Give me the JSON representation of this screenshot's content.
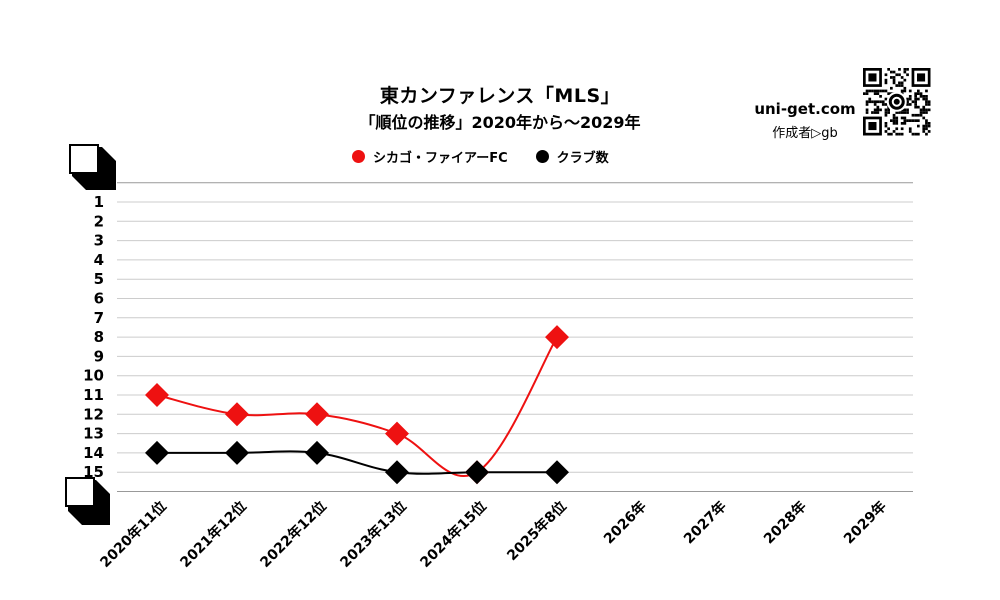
{
  "header": {
    "title": "東カンファレンス「MLS」",
    "subtitle": "「順位の推移」2020年から～2029年",
    "site": "uni-get.com",
    "author": "作成者▷gb"
  },
  "legend": {
    "series1_label": "シカゴ・ファイアーFC",
    "series2_label": "クラブ数"
  },
  "colors": {
    "series1": "#ee1111",
    "series2": "#000000",
    "grid": "#cccccc"
  },
  "chart_data": {
    "type": "line",
    "title": "東カンファレンス「MLS」",
    "subtitle": "「順位の推移」2020年から～2029年",
    "categories": [
      "2020年11位",
      "2021年12位",
      "2022年12位",
      "2023年13位",
      "2024年15位",
      "2025年8位",
      "2026年",
      "2027年",
      "2028年",
      "2029年"
    ],
    "y_ticks": [
      "1",
      "2",
      "3",
      "4",
      "5",
      "6",
      "7",
      "8",
      "9",
      "10",
      "11",
      "12",
      "13",
      "14",
      "15"
    ],
    "y_range": [
      1,
      15
    ],
    "y_inverted": true,
    "grid": true,
    "legend_position": "top-center",
    "series": [
      {
        "name": "シカゴ・ファイアーFC",
        "color": "#ee1111",
        "values": [
          11,
          12,
          12,
          13,
          15,
          8,
          null,
          null,
          null,
          null
        ]
      },
      {
        "name": "クラブ数",
        "color": "#000000",
        "values": [
          14,
          14,
          14,
          15,
          15,
          15,
          null,
          null,
          null,
          null
        ]
      }
    ]
  }
}
